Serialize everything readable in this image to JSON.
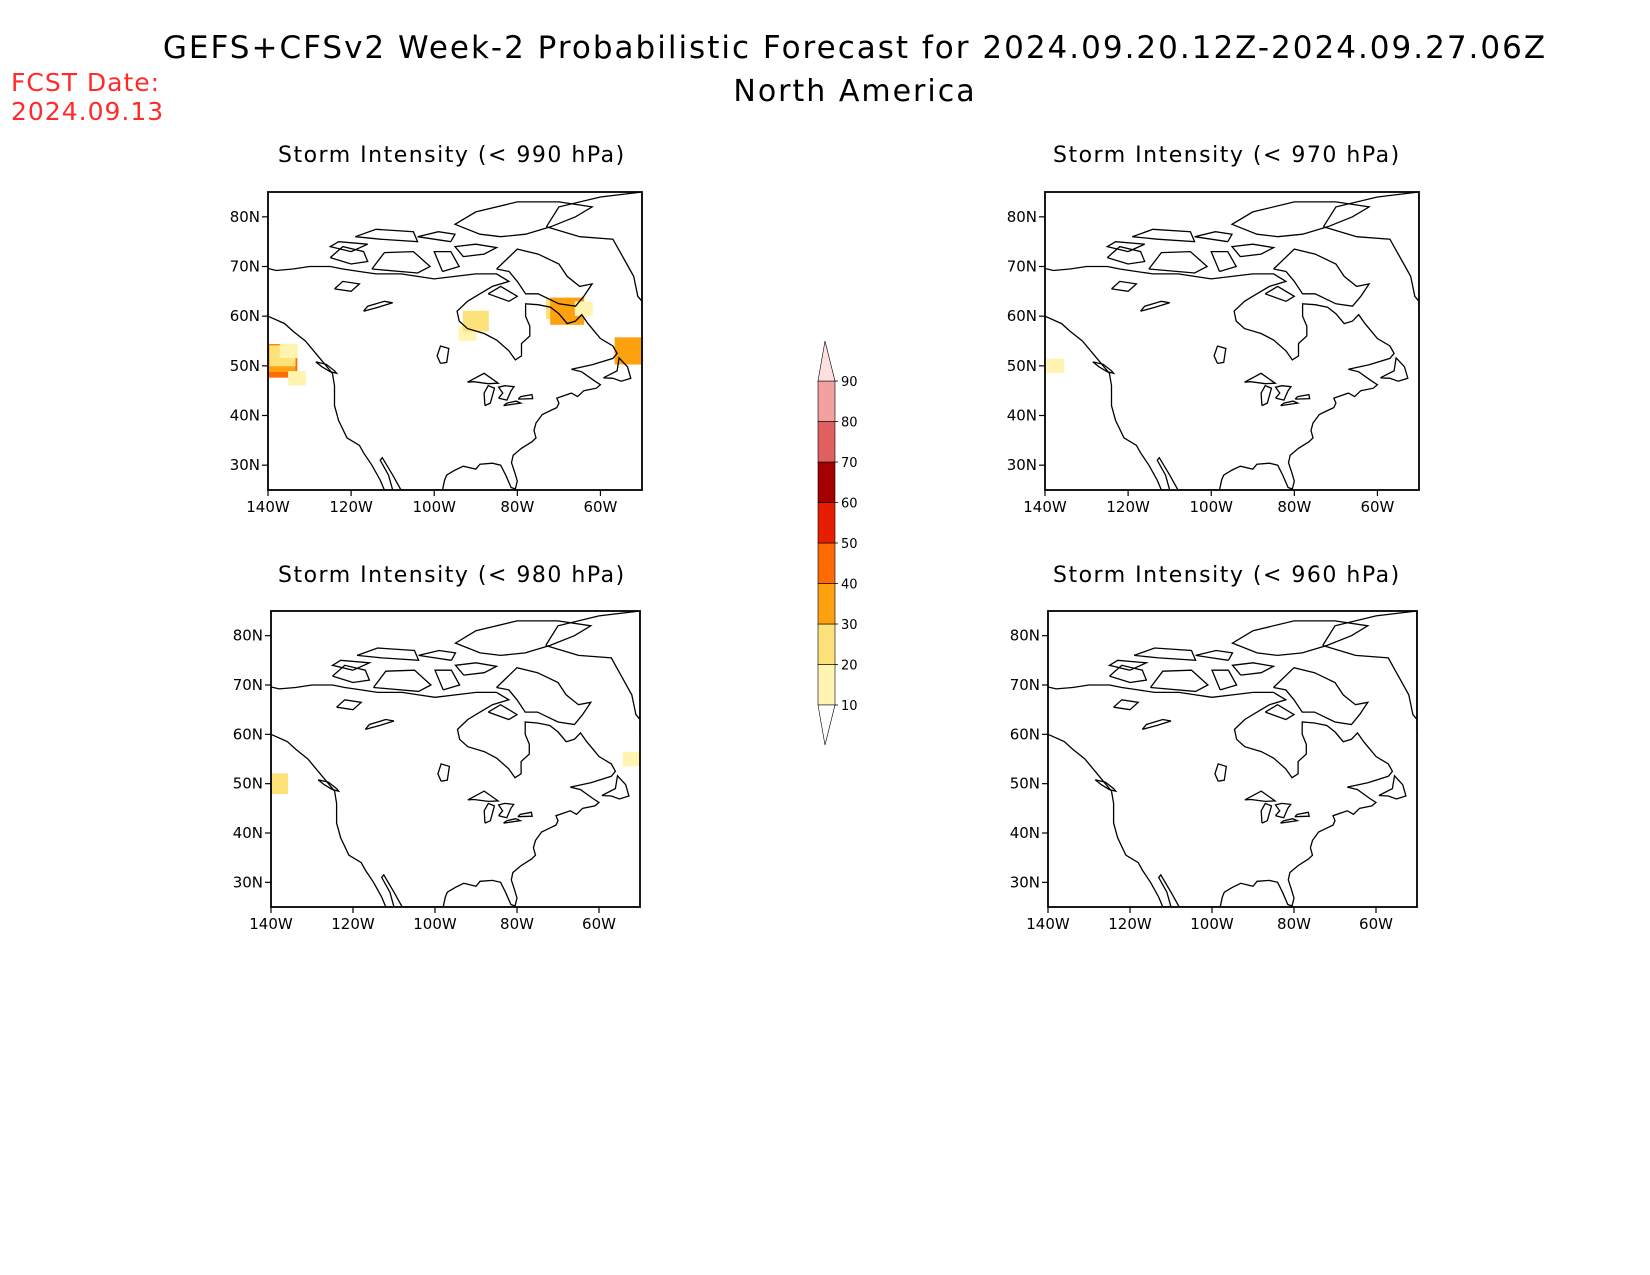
{
  "header": {
    "title": "GEFS+CFSv2 Week-2 Probabilistic Forecast for 2024.09.20.12Z-2024.09.27.06Z",
    "subtitle": "North America",
    "fcst_label": "FCST Date:",
    "fcst_date": "2024.09.13"
  },
  "colors": {
    "fcst_text": "#ff2a2a",
    "levels": [
      "#fff5b0",
      "#fde27a",
      "#fda20e",
      "#fe6a05",
      "#e71d00",
      "#a40000",
      "#e06060",
      "#f3a0a0",
      "#fde0e0"
    ]
  },
  "panels": [
    {
      "id": "p990",
      "title": "Storm Intensity (< 990 hPa)",
      "lat_ticks": [
        "80N",
        "70N",
        "60N",
        "50N",
        "40N",
        "30N"
      ],
      "lon_ticks": [
        "140W",
        "120W",
        "100W",
        "80W",
        "60W"
      ],
      "features": [
        {
          "lon": -138.0,
          "lat": 51.0,
          "level": 4
        },
        {
          "lon": -137.5,
          "lat": 51.5,
          "level": 3
        },
        {
          "lon": -136.5,
          "lat": 52.0,
          "level": 2
        },
        {
          "lon": -135.0,
          "lat": 53.0,
          "level": 1
        },
        {
          "lon": -133.0,
          "lat": 47.5,
          "level": 1
        },
        {
          "lon": -92.0,
          "lat": 56.5,
          "level": 1
        },
        {
          "lon": -90.0,
          "lat": 59.0,
          "level": 2
        },
        {
          "lon": -70.0,
          "lat": 61.5,
          "level": 2
        },
        {
          "lon": -68.0,
          "lat": 61.0,
          "level": 3
        },
        {
          "lon": -64.0,
          "lat": 61.5,
          "level": 1
        },
        {
          "lon": -53.0,
          "lat": 54.0,
          "level": 1
        },
        {
          "lon": -52.5,
          "lat": 53.0,
          "level": 3
        }
      ]
    },
    {
      "id": "p970",
      "title": "Storm Intensity (< 970 hPa)",
      "lat_ticks": [
        "80N",
        "70N",
        "60N",
        "50N",
        "40N",
        "30N"
      ],
      "lon_ticks": [
        "140W",
        "120W",
        "100W",
        "80W",
        "60W"
      ],
      "features": [
        {
          "lon": -137.5,
          "lat": 50.0,
          "level": 1
        }
      ]
    },
    {
      "id": "p980",
      "title": "Storm Intensity (< 980 hPa)",
      "lat_ticks": [
        "80N",
        "70N",
        "60N",
        "50N",
        "40N",
        "30N"
      ],
      "lon_ticks": [
        "140W",
        "120W",
        "100W",
        "80W",
        "60W"
      ],
      "features": [
        {
          "lon": -138.5,
          "lat": 50.5,
          "level": 1
        },
        {
          "lon": -139.0,
          "lat": 50.0,
          "level": 2
        },
        {
          "lon": -52.0,
          "lat": 55.0,
          "level": 1
        }
      ]
    },
    {
      "id": "p960",
      "title": "Storm Intensity (< 960 hPa)",
      "lat_ticks": [
        "80N",
        "70N",
        "60N",
        "50N",
        "40N",
        "30N"
      ],
      "lon_ticks": [
        "140W",
        "120W",
        "100W",
        "80W",
        "60W"
      ],
      "features": []
    }
  ],
  "colorbar": {
    "labels": [
      "90",
      "80",
      "70",
      "60",
      "50",
      "40",
      "30",
      "20",
      "10"
    ]
  }
}
